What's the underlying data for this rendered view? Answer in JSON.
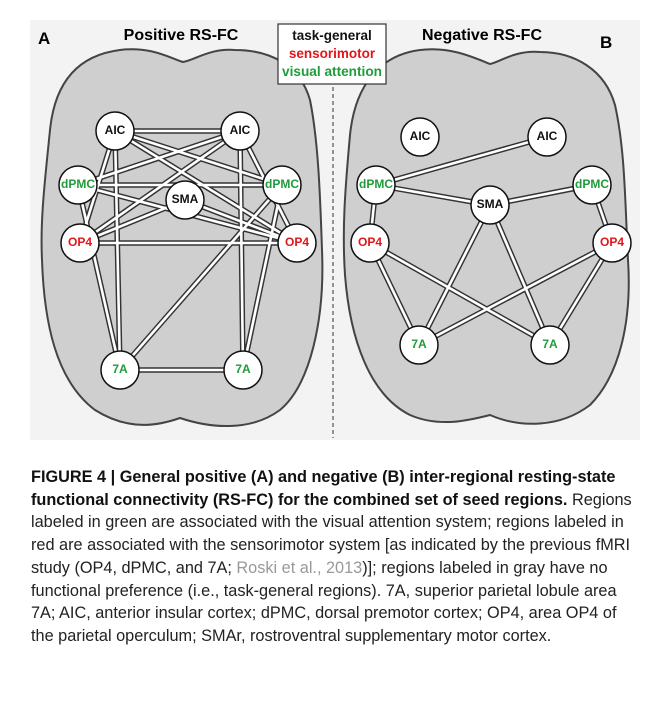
{
  "figure": {
    "panels": [
      {
        "letter": "A",
        "title": "Positive RS-FC",
        "nodes": [
          {
            "label": "AIC"
          },
          {
            "label": "AIC"
          },
          {
            "label": "dPMC"
          },
          {
            "label": "dPMC"
          },
          {
            "label": "SMA"
          },
          {
            "label": "OP4"
          },
          {
            "label": "OP4"
          },
          {
            "label": "7A"
          },
          {
            "label": "7A"
          }
        ]
      },
      {
        "letter": "B",
        "title": "Negative RS-FC",
        "nodes": [
          {
            "label": "AIC"
          },
          {
            "label": "AIC"
          },
          {
            "label": "dPMC"
          },
          {
            "label": "dPMC"
          },
          {
            "label": "SMA"
          },
          {
            "label": "OP4"
          },
          {
            "label": "OP4"
          },
          {
            "label": "7A"
          },
          {
            "label": "7A"
          }
        ]
      }
    ],
    "legend": [
      "task-general",
      "sensorimotor",
      "visual attention"
    ]
  },
  "caption": {
    "label": "FIGURE 4 | General positive (A) and negative (B) inter-regional resting-state functional connectivity (RS-FC) for the combined set of seed regions.",
    "text_before": " Regions labeled in green are associated with the visual attention system; regions labeled in red are associated with the sensorimotor system [as indicated by the previous fMRI study (OP4, dPMC, and 7A; ",
    "citation": "Roski et al., 2013",
    "text_after": ")]; regions labeled in gray have no functional preference (i.e., task-general regions). 7A, superior parietal lobule area 7A; AIC, anterior insular cortex; dPMC, dorsal premotor cortex; OP4, area OP4 of the parietal operculum; SMAr, rostroventral supplementary motor cortex."
  }
}
